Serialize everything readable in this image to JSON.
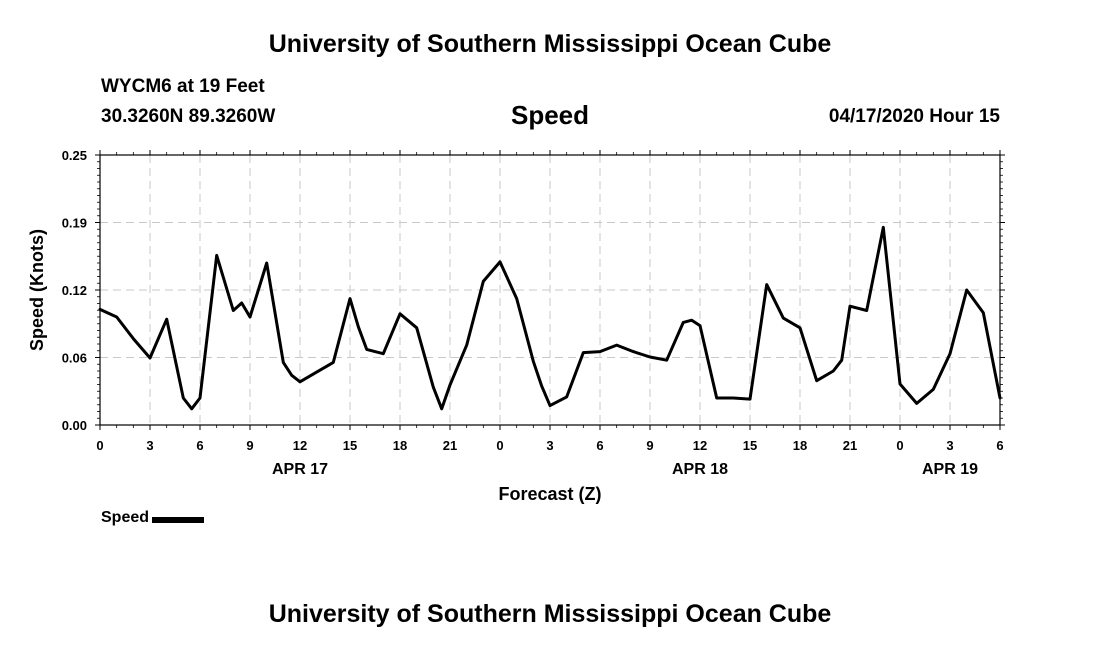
{
  "header": {
    "title": "University of Southern Mississippi Ocean Cube",
    "station": "WYCM6 at 19 Feet",
    "coords": "30.3260N 89.3260W",
    "chart_title": "Speed",
    "timestamp": "04/17/2020 Hour 15"
  },
  "footer": {
    "title": "University of Southern Mississippi Ocean Cube"
  },
  "legend": {
    "label": "Speed",
    "color": "#000000"
  },
  "chart_data": {
    "type": "line",
    "title": "Speed",
    "xlabel": "Forecast (Z)",
    "ylabel": "Speed (Knots)",
    "ylim": [
      0.0,
      0.25
    ],
    "yticks": [
      "0.00",
      "0.06",
      "0.12",
      "0.19",
      "0.25"
    ],
    "xlim": [
      0,
      54
    ],
    "xtick_labels": [
      "0",
      "3",
      "6",
      "9",
      "12",
      "15",
      "18",
      "21",
      "0",
      "3",
      "6",
      "9",
      "12",
      "15",
      "18",
      "21",
      "0",
      "3",
      "6"
    ],
    "date_labels": [
      {
        "text": "APR 17",
        "hour": 12
      },
      {
        "text": "APR 18",
        "hour": 36
      },
      {
        "text": "APR 19",
        "hour": 51
      }
    ],
    "grid": true,
    "legend_position": "bottom-left",
    "series": [
      {
        "name": "Speed",
        "color": "#000000",
        "x": [
          0,
          1,
          2,
          3,
          4,
          5,
          5.5,
          6,
          7,
          8,
          8.5,
          9,
          10,
          11,
          11.5,
          12,
          13,
          14,
          15,
          15.5,
          16,
          17,
          18,
          19,
          20,
          20.5,
          21,
          22,
          23,
          24,
          25,
          26,
          26.5,
          27,
          28,
          29,
          30,
          31,
          32,
          33,
          34,
          35,
          35.5,
          36,
          37,
          38,
          39,
          40,
          41,
          42,
          43,
          44,
          44.5,
          45,
          46,
          47,
          48,
          49,
          50,
          51,
          52,
          53,
          54
        ],
        "values": [
          0.107,
          0.1,
          0.08,
          0.062,
          0.098,
          0.025,
          0.015,
          0.025,
          0.157,
          0.106,
          0.113,
          0.1,
          0.15,
          0.058,
          0.046,
          0.04,
          0.049,
          0.058,
          0.117,
          0.091,
          0.07,
          0.066,
          0.103,
          0.09,
          0.035,
          0.015,
          0.037,
          0.074,
          0.133,
          0.151,
          0.117,
          0.059,
          0.036,
          0.018,
          0.026,
          0.067,
          0.068,
          0.074,
          0.068,
          0.063,
          0.06,
          0.095,
          0.097,
          0.092,
          0.025,
          0.025,
          0.024,
          0.13,
          0.099,
          0.09,
          0.041,
          0.05,
          0.06,
          0.11,
          0.106,
          0.183,
          0.038,
          0.02,
          0.033,
          0.066,
          0.125,
          0.104,
          0.025
        ]
      }
    ]
  }
}
